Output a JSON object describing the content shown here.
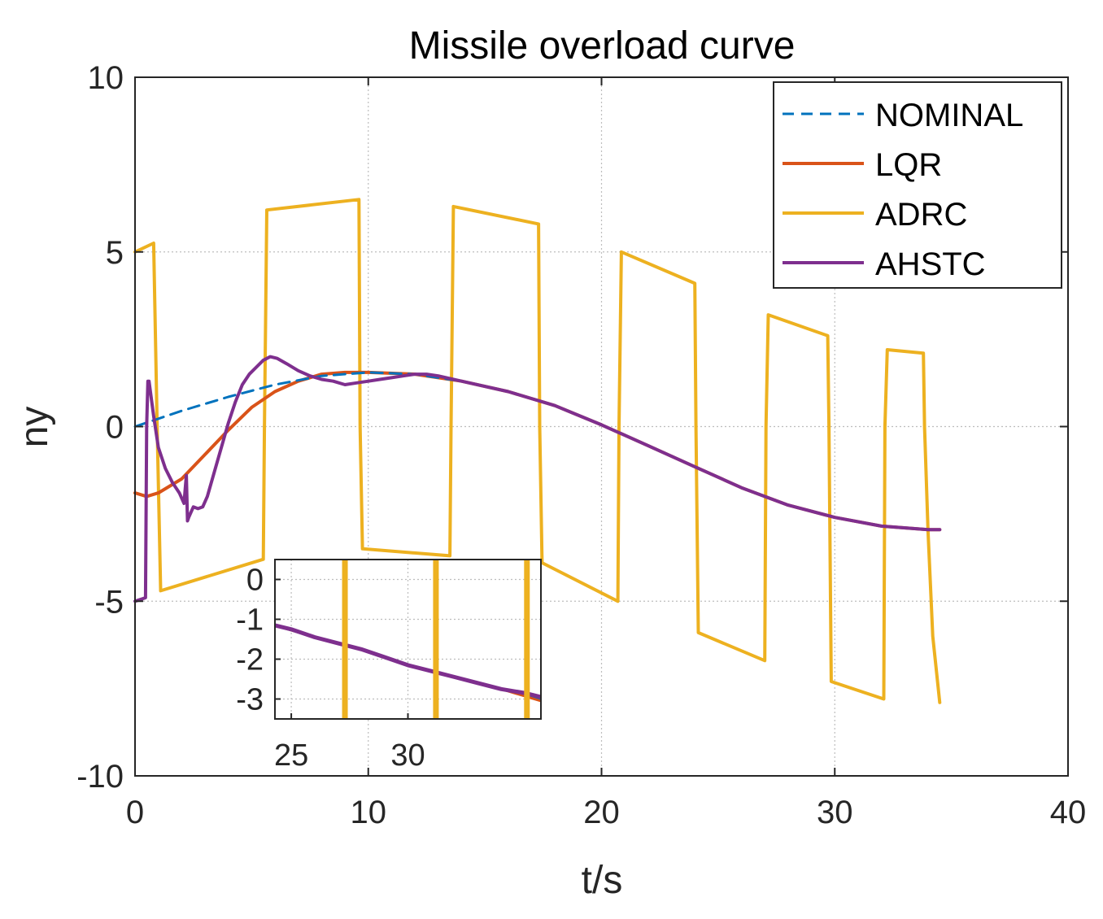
{
  "chart_data": {
    "type": "line",
    "title": "Missile overload curve",
    "xlabel": "t/s",
    "ylabel": "ny",
    "xlim": [
      0,
      40
    ],
    "ylim": [
      -10,
      10
    ],
    "xticks": [
      0,
      10,
      20,
      30,
      40
    ],
    "yticks": [
      -10,
      -5,
      0,
      5,
      10
    ],
    "grid": true,
    "legend_position": "top-right",
    "series": [
      {
        "name": "NOMINAL",
        "color": "#0072BD",
        "style": "dashed",
        "x": [
          0,
          2,
          4,
          6,
          8,
          10,
          12,
          14,
          16,
          18,
          20,
          22,
          24,
          26,
          28,
          30,
          32,
          34,
          34.5
        ],
        "y": [
          0,
          0.45,
          0.85,
          1.2,
          1.45,
          1.55,
          1.5,
          1.3,
          1.0,
          0.6,
          0.05,
          -0.55,
          -1.15,
          -1.75,
          -2.25,
          -2.6,
          -2.85,
          -2.95,
          -2.95
        ]
      },
      {
        "name": "LQR",
        "color": "#D95319",
        "style": "solid",
        "x": [
          0,
          0.5,
          1,
          2,
          3,
          4,
          5,
          6,
          7,
          8,
          9,
          10,
          12,
          14,
          16,
          18,
          20,
          22,
          24,
          26,
          28,
          30,
          32,
          34,
          34.5
        ],
        "y": [
          -1.9,
          -2.0,
          -1.9,
          -1.5,
          -0.8,
          -0.1,
          0.55,
          1.0,
          1.3,
          1.5,
          1.55,
          1.55,
          1.5,
          1.3,
          1.0,
          0.6,
          0.05,
          -0.55,
          -1.15,
          -1.75,
          -2.25,
          -2.6,
          -2.85,
          -2.95,
          -2.95
        ]
      },
      {
        "name": "ADRC",
        "color": "#EDB120",
        "style": "solid",
        "x": [
          0,
          0.8,
          0.95,
          1.1,
          5.5,
          5.55,
          5.65,
          9.6,
          9.65,
          9.75,
          13.5,
          13.55,
          13.65,
          17.3,
          17.35,
          17.45,
          20.7,
          20.75,
          20.85,
          24.0,
          24.05,
          24.15,
          27.0,
          27.05,
          27.15,
          29.7,
          29.75,
          29.85,
          32.1,
          32.15,
          32.25,
          33.8,
          33.85,
          34.0,
          34.2,
          34.5
        ],
        "y": [
          5.0,
          5.25,
          0.0,
          -4.7,
          -3.8,
          0.0,
          6.2,
          6.5,
          0.0,
          -3.5,
          -3.7,
          0.0,
          6.3,
          5.8,
          0.0,
          -3.9,
          -5.0,
          0.0,
          5.0,
          4.1,
          0.0,
          -5.9,
          -6.7,
          0.0,
          3.2,
          2.6,
          0.0,
          -7.3,
          -7.8,
          0.0,
          2.2,
          2.1,
          0.0,
          -3.0,
          -6.0,
          -7.9
        ]
      },
      {
        "name": "AHSTC",
        "color": "#7E2F8E",
        "style": "solid",
        "x": [
          0,
          0.45,
          0.5,
          0.55,
          0.6,
          0.8,
          1.0,
          1.3,
          1.6,
          1.9,
          2.1,
          2.2,
          2.25,
          2.3,
          2.5,
          2.7,
          2.9,
          3.1,
          3.4,
          3.7,
          4.0,
          4.3,
          4.6,
          4.9,
          5.2,
          5.5,
          5.8,
          6.1,
          6.5,
          7.0,
          7.5,
          8.0,
          8.5,
          9.0,
          9.5,
          10.0,
          10.5,
          11.0,
          11.5,
          12.0,
          12.5,
          13.0,
          14,
          16,
          18,
          20,
          22,
          24,
          26,
          28,
          30,
          32,
          34,
          34.5
        ],
        "y": [
          -5.0,
          -4.9,
          0.0,
          1.3,
          1.3,
          0.3,
          -0.6,
          -1.2,
          -1.6,
          -1.9,
          -2.2,
          -1.4,
          -2.7,
          -2.6,
          -2.3,
          -2.35,
          -2.3,
          -2.0,
          -1.3,
          -0.6,
          0.1,
          0.7,
          1.2,
          1.5,
          1.7,
          1.9,
          2.0,
          1.95,
          1.8,
          1.6,
          1.45,
          1.35,
          1.3,
          1.2,
          1.25,
          1.3,
          1.35,
          1.4,
          1.45,
          1.5,
          1.5,
          1.45,
          1.3,
          1.0,
          0.6,
          0.05,
          -0.55,
          -1.15,
          -1.75,
          -2.25,
          -2.6,
          -2.85,
          -2.95,
          -2.95
        ]
      }
    ],
    "inset": {
      "xlim": [
        24.3,
        35.7
      ],
      "ylim": [
        -3.5,
        0.5
      ],
      "xticks": [
        25,
        30
      ],
      "yticks": [
        0,
        -1,
        -2,
        -3
      ],
      "grid": true,
      "series": [
        {
          "name": "NOMINAL",
          "color": "#0072BD",
          "x": [
            24.3,
            26,
            28,
            30,
            32,
            34,
            35.7
          ],
          "y": [
            -1.15,
            -1.45,
            -1.75,
            -2.15,
            -2.45,
            -2.75,
            -3.0
          ]
        },
        {
          "name": "LQR",
          "color": "#D95319",
          "x": [
            24.3,
            26,
            28,
            30,
            32,
            34,
            35.7
          ],
          "y": [
            -1.15,
            -1.45,
            -1.75,
            -2.15,
            -2.45,
            -2.75,
            -3.05
          ]
        },
        {
          "name": "AHSTC",
          "color": "#7E2F8E",
          "x": [
            24.3,
            25,
            26,
            27,
            28,
            29,
            30,
            31,
            32,
            33,
            34,
            35,
            35.7
          ],
          "y": [
            -1.15,
            -1.25,
            -1.45,
            -1.6,
            -1.75,
            -1.95,
            -2.15,
            -2.3,
            -2.45,
            -2.6,
            -2.75,
            -2.85,
            -2.95
          ]
        },
        {
          "name": "ADRC",
          "color": "#EDB120",
          "vlines": [
            27.3,
            31.2,
            35.1
          ]
        }
      ]
    }
  }
}
